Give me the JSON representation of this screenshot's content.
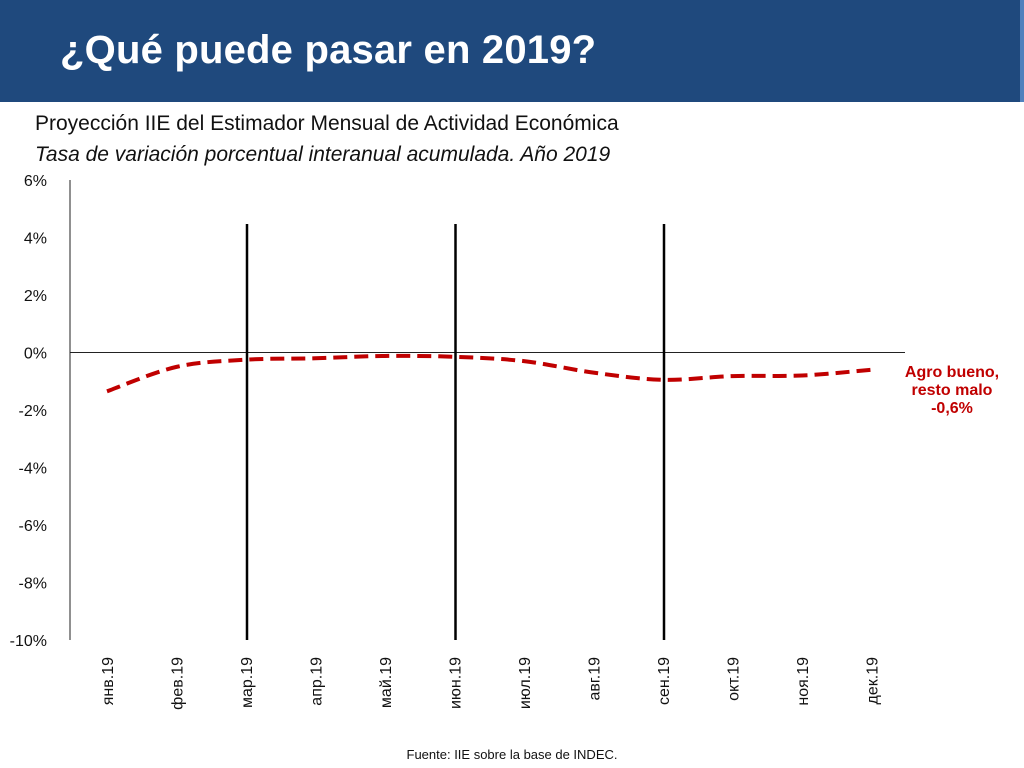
{
  "slide": {
    "title": "¿Qué puede pasar en 2019?",
    "footnote": "Fuente: IIE sobre la base de INDEC."
  },
  "chart_data": {
    "type": "line",
    "title": "Proyección IIE del Estimador Mensual de Actividad Económica",
    "subtitle": "Tasa de variación porcentual interanual acumulada. Año 2019",
    "categories": [
      "янв.19",
      "фев.19",
      "мар.19",
      "апр.19",
      "май.19",
      "июн.19",
      "июл.19",
      "авг.19",
      "сен.19",
      "окт.19",
      "ноя.19",
      "дек.19"
    ],
    "series": [
      {
        "name": "Agro bueno, resto malo",
        "values": [
          -1.35,
          -0.5,
          -0.25,
          -0.2,
          -0.12,
          -0.15,
          -0.3,
          -0.7,
          -0.95,
          -0.82,
          -0.8,
          -0.6
        ],
        "color": "#c00000",
        "style": "dashed"
      }
    ],
    "ylim": [
      -10,
      6
    ],
    "yticks": [
      6,
      4,
      2,
      0,
      -2,
      -4,
      -6,
      -8,
      -10
    ],
    "ytick_labels": [
      "6%",
      "4%",
      "2%",
      "0%",
      "-2%",
      "-4%",
      "-6%",
      "-8%",
      "-10%"
    ],
    "vertical_markers": [
      "мар.19",
      "июн.19",
      "сен.19"
    ],
    "end_label": [
      "Agro bueno,",
      "resto malo",
      "-0,6%"
    ],
    "xlabel": "",
    "ylabel": "",
    "grid": false
  }
}
